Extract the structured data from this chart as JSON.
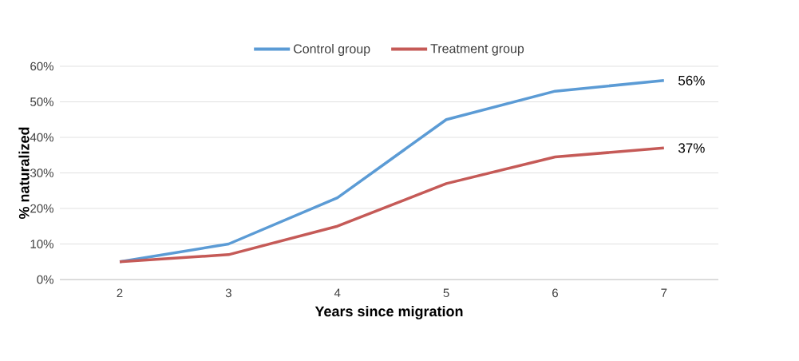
{
  "chart_data": {
    "type": "line",
    "xlabel": "Years since migration",
    "ylabel": "% naturalized",
    "categories": [
      "2",
      "3",
      "4",
      "5",
      "6",
      "7"
    ],
    "series": [
      {
        "name": "Control group",
        "color": "#5b9bd5",
        "values": [
          5,
          10,
          23,
          45,
          53,
          56
        ],
        "value_labels": [
          null,
          null,
          null,
          null,
          null,
          "56%"
        ]
      },
      {
        "name": "Treatment group",
        "color": "#c55a57",
        "values": [
          5,
          7,
          15,
          27,
          34.5,
          37
        ],
        "value_labels": [
          null,
          null,
          null,
          null,
          null,
          "37%"
        ]
      }
    ],
    "ylim": [
      0,
      60
    ],
    "yticks": [
      {
        "value": 0,
        "label": "0%"
      },
      {
        "value": 10,
        "label": "10%"
      },
      {
        "value": 20,
        "label": "20%"
      },
      {
        "value": 30,
        "label": "30%"
      },
      {
        "value": 40,
        "label": "40%"
      },
      {
        "value": 50,
        "label": "50%"
      },
      {
        "value": 60,
        "label": "60%"
      }
    ],
    "grid": "y",
    "legend": "top",
    "marker": "none",
    "line_style": "solid"
  }
}
